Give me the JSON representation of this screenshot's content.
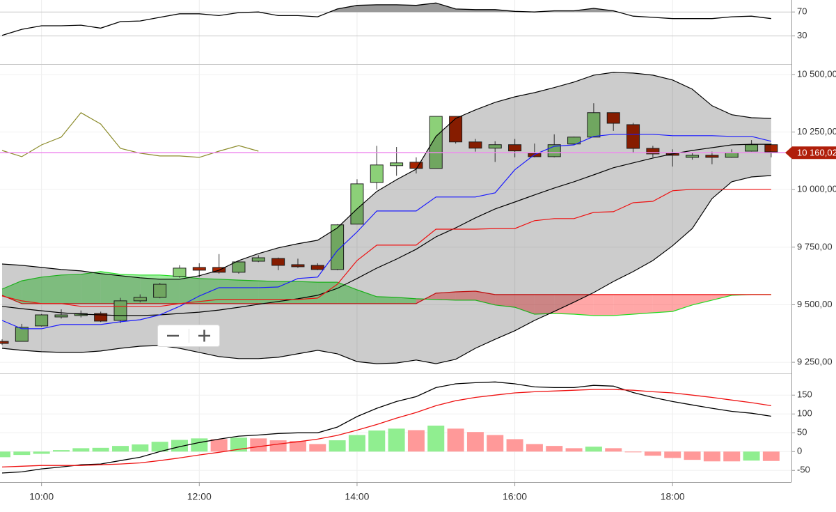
{
  "chart_data": [
    {
      "type": "rsi",
      "color": "#000000",
      "overbought_fill": "#999999",
      "values": [
        31,
        41,
        47,
        47,
        48,
        43,
        54,
        55,
        61,
        67,
        67,
        64,
        69,
        70,
        64,
        64,
        62,
        75,
        81,
        82,
        82,
        81,
        85,
        75,
        74,
        74,
        71,
        70,
        72,
        72,
        76,
        72,
        63,
        61,
        59,
        59,
        59,
        62,
        63,
        59
      ],
      "ylim": [
        -17,
        90
      ],
      "yticks": [
        30,
        70
      ],
      "grid": true
    },
    {
      "type": "candlestick",
      "up_color": "#8cd078",
      "down_color": "#a82400",
      "open": [
        9341,
        9341,
        9408,
        9447,
        9453,
        9462,
        9432,
        9517,
        9532,
        9623,
        9662,
        9662,
        9641,
        9689,
        9701,
        9674,
        9671,
        9653,
        9850,
        10031,
        10104,
        10119,
        10092,
        10318,
        10207,
        10180,
        10195,
        10158,
        10143,
        10198,
        10228,
        10334,
        10282,
        10179,
        10158,
        10140,
        10149,
        10140,
        10167,
        10195
      ],
      "high": [
        9350,
        9417,
        9460,
        9480,
        9475,
        9470,
        9530,
        9545,
        9595,
        9672,
        9680,
        9720,
        9690,
        9715,
        9705,
        9700,
        9680,
        9850,
        10045,
        10190,
        10185,
        10140,
        10318,
        10318,
        10220,
        10210,
        10220,
        10200,
        10240,
        10230,
        10375,
        10334,
        10290,
        10190,
        10175,
        10160,
        10165,
        10175,
        10215,
        10200
      ],
      "low": [
        9325,
        9341,
        9405,
        9440,
        9445,
        9425,
        9420,
        9510,
        9528,
        9617,
        9620,
        9635,
        9635,
        9685,
        9650,
        9660,
        9650,
        9650,
        9850,
        10000,
        10060,
        10070,
        10092,
        10200,
        10165,
        10120,
        10140,
        10140,
        10140,
        10195,
        10228,
        10255,
        10160,
        10140,
        10100,
        10130,
        10110,
        10138,
        10165,
        10140
      ],
      "close": [
        9332,
        9402,
        9456,
        9456,
        9462,
        9429,
        9517,
        9532,
        9589,
        9659,
        9650,
        9641,
        9686,
        9704,
        9671,
        9665,
        9653,
        9847,
        10025,
        10107,
        10116,
        10092,
        10318,
        10207,
        10180,
        10195,
        10168,
        10143,
        10195,
        10228,
        10334,
        10288,
        10179,
        10155,
        10149,
        10149,
        10140,
        10161,
        10195,
        10164
      ],
      "bands": {
        "color": "#000000",
        "fill": "rgba(0,0,0,0.2)",
        "upper": [
          9677,
          9671,
          9662,
          9653,
          9647,
          9635,
          9626,
          9617,
          9611,
          9611,
          9626,
          9650,
          9692,
          9722,
          9747,
          9765,
          9780,
          9834,
          9916,
          9992,
          10043,
          10089,
          10231,
          10309,
          10346,
          10379,
          10403,
          10421,
          10443,
          10467,
          10497,
          10509,
          10506,
          10497,
          10476,
          10436,
          10364,
          10325,
          10312,
          10309
        ],
        "middle": [
          9493,
          9483,
          9474,
          9465,
          9459,
          9456,
          9453,
          9453,
          9456,
          9462,
          9468,
          9477,
          9489,
          9502,
          9514,
          9526,
          9541,
          9571,
          9614,
          9659,
          9698,
          9741,
          9795,
          9834,
          9877,
          9916,
          9946,
          9977,
          10007,
          10034,
          10064,
          10095,
          10116,
          10137,
          10155,
          10170,
          10182,
          10194,
          10197,
          10197
        ],
        "lower": [
          9311,
          9302,
          9296,
          9293,
          9293,
          9299,
          9311,
          9320,
          9323,
          9311,
          9293,
          9275,
          9266,
          9266,
          9272,
          9287,
          9302,
          9287,
          9253,
          9244,
          9247,
          9260,
          9244,
          9263,
          9311,
          9350,
          9387,
          9432,
          9471,
          9511,
          9553,
          9601,
          9644,
          9692,
          9756,
          9831,
          9961,
          10034,
          10055,
          10061
        ]
      },
      "cloud": {
        "span_a_color": "#22dd22",
        "span_b_color": "#ee1111",
        "up_fill": "rgba(40,210,40,0.45)",
        "down_fill": "rgba(255,60,60,0.45)",
        "span_a": [
          9568,
          9604,
          9620,
          9629,
          9632,
          9644,
          9632,
          9629,
          9629,
          9623,
          9614,
          9611,
          9607,
          9604,
          9601,
          9601,
          9598,
          9598,
          9565,
          9535,
          9532,
          9526,
          9523,
          9520,
          9520,
          9499,
          9489,
          9459,
          9462,
          9459,
          9453,
          9453,
          9459,
          9465,
          9471,
          9499,
          9520,
          9541,
          9544,
          9544
        ],
        "span_b": [
          9541,
          9505,
          9505,
          9505,
          9505,
          9505,
          9505,
          9505,
          9505,
          9505,
          9505,
          9505,
          9505,
          9505,
          9505,
          9505,
          9505,
          9505,
          9505,
          9505,
          9505,
          9505,
          9550,
          9556,
          9559,
          9544,
          9544,
          9544,
          9544,
          9544,
          9544,
          9544,
          9544,
          9544,
          9544,
          9544,
          9544,
          9544,
          9544,
          9544
        ]
      },
      "lines": [
        {
          "color": "#1a1aff",
          "values": [
            9432,
            9396,
            9396,
            9414,
            9414,
            9414,
            9426,
            9435,
            9456,
            9493,
            9538,
            9574,
            9574,
            9574,
            9577,
            9614,
            9620,
            9735,
            9816,
            9907,
            9907,
            9907,
            9968,
            9968,
            9968,
            9986,
            10086,
            10152,
            10188,
            10194,
            10231,
            10240,
            10240,
            10240,
            10234,
            10234,
            10234,
            10231,
            10231,
            10210
          ]
        },
        {
          "color": "#ee1111",
          "values": [
            9538,
            9517,
            9505,
            9505,
            9493,
            9493,
            9493,
            9493,
            9493,
            9505,
            9514,
            9523,
            9523,
            9523,
            9523,
            9523,
            9529,
            9589,
            9692,
            9759,
            9759,
            9759,
            9828,
            9828,
            9828,
            9831,
            9831,
            9865,
            9874,
            9874,
            9901,
            9904,
            9943,
            9949,
            9995,
            10001,
            10001,
            10001,
            10001,
            10001
          ]
        },
        {
          "color": "#8b8b2a",
          "values": [
            10170,
            10143,
            10194,
            10228,
            10334,
            10285,
            10179,
            10158,
            10146,
            10146,
            10140,
            10167,
            10191,
            10167,
            null,
            null,
            null,
            null,
            null,
            null,
            null,
            null,
            null,
            null,
            null,
            null,
            null,
            null,
            null,
            null,
            null,
            null,
            null,
            null,
            null,
            null,
            null,
            null,
            null,
            null
          ]
        }
      ],
      "last_price": {
        "value": 10160.02,
        "label": "10 160,02",
        "line_color": "#ee88ee",
        "tag_color": "#b01e0a"
      },
      "ylim": [
        9205,
        10542
      ],
      "yticks": [
        {
          "value": 9250,
          "label": "9 250,00"
        },
        {
          "value": 9500,
          "label": "9 500,00"
        },
        {
          "value": 9750,
          "label": "9 750,00"
        },
        {
          "value": 10000,
          "label": "10 000,00"
        },
        {
          "value": 10250,
          "label": "10 250,00"
        },
        {
          "value": 10500,
          "label": "10 500,00"
        }
      ],
      "grid": true
    },
    {
      "type": "macd",
      "up_color": "#90ee90",
      "down_color": "#ff9999",
      "macd_color": "#000000",
      "signal_color": "#ee1111",
      "categories": [
        null,
        null,
        "10:00",
        null,
        null,
        null,
        null,
        null,
        null,
        null,
        "12:00",
        null,
        null,
        null,
        null,
        null,
        null,
        null,
        "14:00",
        null,
        null,
        null,
        null,
        null,
        null,
        null,
        "16:00",
        null,
        null,
        null,
        null,
        null,
        null,
        null,
        "18:00",
        null,
        null,
        null,
        null,
        null
      ],
      "histogram": [
        -15,
        -9,
        -6,
        4,
        9,
        10,
        15,
        19,
        26,
        31,
        35,
        33,
        37,
        35,
        30,
        28,
        20,
        30,
        44,
        56,
        61,
        57,
        69,
        61,
        52,
        44,
        33,
        20,
        15,
        9,
        13,
        9,
        -2,
        -11,
        -17,
        -22,
        -26,
        -26,
        -24,
        -25
      ],
      "macd": [
        -57,
        -54,
        -46,
        -41,
        -35,
        -33,
        -24,
        -15,
        0,
        13,
        24,
        33,
        41,
        44,
        48,
        50,
        50,
        65,
        93,
        115,
        133,
        146,
        170,
        180,
        183,
        185,
        180,
        172,
        170,
        170,
        176,
        174,
        157,
        144,
        133,
        124,
        115,
        107,
        102,
        94
      ],
      "signal": [
        -41,
        -39,
        -37,
        -37,
        -37,
        -35,
        -33,
        -30,
        -24,
        -17,
        -9,
        -2,
        6,
        13,
        20,
        26,
        33,
        43,
        57,
        72,
        89,
        104,
        122,
        135,
        144,
        150,
        156,
        159,
        161,
        163,
        165,
        165,
        163,
        159,
        156,
        150,
        144,
        137,
        130,
        122
      ],
      "ylim": [
        -81,
        206
      ],
      "yticks": [
        -50,
        0,
        50,
        100,
        150
      ],
      "grid": true
    }
  ]
}
